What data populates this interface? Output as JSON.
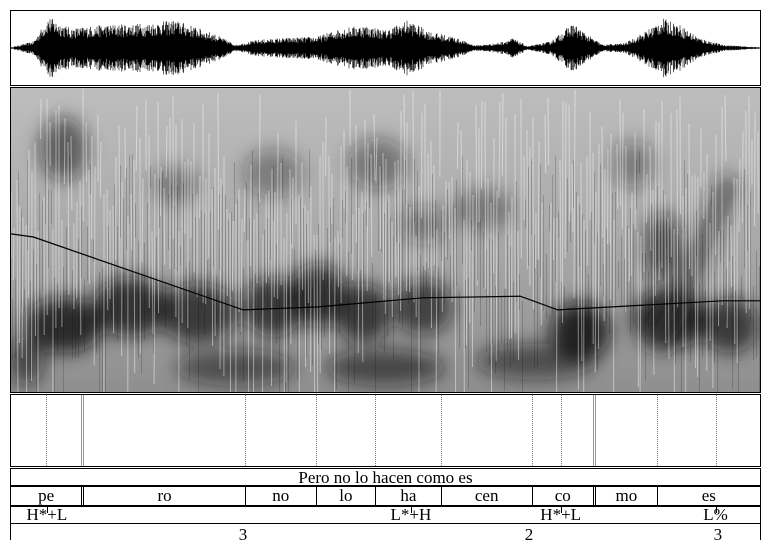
{
  "sentence": "Pero no lo hacen como es",
  "syllables": [
    {
      "label": "pe",
      "start": 0.0,
      "end": 0.094
    },
    {
      "label": "ro",
      "start": 0.094,
      "end": 0.312
    },
    {
      "label": "no",
      "start": 0.312,
      "end": 0.407
    },
    {
      "label": "lo",
      "start": 0.407,
      "end": 0.486
    },
    {
      "label": "ha",
      "start": 0.486,
      "end": 0.574
    },
    {
      "label": "cen",
      "start": 0.574,
      "end": 0.695
    },
    {
      "label": "co",
      "start": 0.695,
      "end": 0.777
    },
    {
      "label": "mo",
      "start": 0.777,
      "end": 0.862
    },
    {
      "label": "es",
      "start": 0.862,
      "end": 1.0
    }
  ],
  "tones": [
    {
      "label": "H*+L",
      "at": 0.048
    },
    {
      "label": "L*+H",
      "at": 0.534
    },
    {
      "label": "H*+L",
      "at": 0.734
    },
    {
      "label": "L%",
      "at": 0.941
    }
  ],
  "break_indices": [
    {
      "label": "3",
      "at": 0.31
    },
    {
      "label": "2",
      "at": 0.692
    },
    {
      "label": "3",
      "at": 0.944
    }
  ],
  "pitch_contour": [
    [
      0.0,
      0.48
    ],
    [
      0.03,
      0.49
    ],
    [
      0.31,
      0.73
    ],
    [
      0.41,
      0.72
    ],
    [
      0.55,
      0.69
    ],
    [
      0.68,
      0.685
    ],
    [
      0.73,
      0.73
    ],
    [
      0.95,
      0.7
    ],
    [
      1.0,
      0.7
    ]
  ],
  "colors": {
    "line": "#000000",
    "background": "#ffffff"
  }
}
